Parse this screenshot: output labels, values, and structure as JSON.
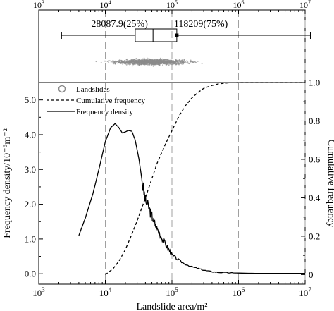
{
  "colors": {
    "grid": "#a0a0a0",
    "scatter": "#8c8c8c",
    "line": "#000000"
  },
  "chart_data": {
    "type": "line",
    "x_scale": "log",
    "xlabel": "Landslide area/m²",
    "ylabel_left": "Frequency density/10⁻⁶m⁻²",
    "ylabel_right": "Cumulative frequency",
    "xlim": [
      1000,
      10000000
    ],
    "ylim_left": [
      -0.3,
      5.5
    ],
    "ylim_right": [
      -0.05,
      1.0
    ],
    "grid": "dashed vertical lines at x = 1e4, 1e5, 1e6, 1e7",
    "legend_position": "top-left",
    "x_ticks": [
      {
        "value": 1000,
        "base": "10",
        "exp": "3"
      },
      {
        "value": 10000,
        "base": "10",
        "exp": "4"
      },
      {
        "value": 100000,
        "base": "10",
        "exp": "5"
      },
      {
        "value": 1000000,
        "base": "10",
        "exp": "6"
      },
      {
        "value": 10000000,
        "base": "10",
        "exp": "7"
      }
    ],
    "y_left_ticks": [
      "0.0",
      "1.0",
      "2.0",
      "3.0",
      "4.0",
      "5.0"
    ],
    "y_right_ticks": [
      "0",
      "0.2",
      "0.4",
      "0.6",
      "0.8",
      "1.0"
    ],
    "legend": [
      {
        "label": "Landslides",
        "symbol": "circle"
      },
      {
        "label": "Cumulative frequency",
        "symbol": "dashed-line"
      },
      {
        "label": "Frequency density",
        "symbol": "solid-line"
      }
    ],
    "boxplot": {
      "whisker_low": 2200,
      "q1": 28087.9,
      "median": 52000,
      "q3": 118209,
      "whisker_high": 12000000,
      "q1_label": "28087.9(25%)",
      "q3_label": "118209(75%)"
    },
    "scatter_range": [
      2200,
      12000000
    ],
    "series": [
      {
        "name": "Frequency density",
        "axis": "left",
        "style": "solid",
        "x": [
          4000,
          5000,
          6500,
          8000,
          10000,
          12000,
          14000,
          16000,
          18000,
          20000,
          22000,
          25000,
          28000,
          32000,
          36000,
          40000,
          45000,
          50000,
          55000,
          60000,
          70000,
          80000,
          90000,
          100000,
          120000,
          150000,
          200000,
          250000,
          300000,
          400000,
          500000,
          700000,
          1000000,
          2000000,
          5000000,
          10000000
        ],
        "values": [
          1.1,
          1.6,
          2.3,
          3.0,
          3.8,
          4.2,
          4.32,
          4.2,
          4.05,
          4.08,
          4.12,
          4.1,
          3.85,
          3.3,
          2.6,
          2.1,
          1.9,
          1.65,
          1.45,
          1.3,
          1.05,
          0.85,
          0.7,
          0.55,
          0.42,
          0.3,
          0.2,
          0.15,
          0.1,
          0.06,
          0.04,
          0.03,
          0.02,
          0.01,
          0.01,
          0.01
        ]
      },
      {
        "name": "Cumulative frequency",
        "axis": "right",
        "style": "dashed",
        "x": [
          10000,
          13000,
          16000,
          20000,
          25000,
          30000,
          40000,
          50000,
          60000,
          80000,
          100000,
          130000,
          160000,
          200000,
          250000,
          300000,
          400000,
          500000,
          700000,
          1000000,
          2000000,
          5000000,
          10000000
        ],
        "values": [
          0.0,
          0.03,
          0.07,
          0.13,
          0.21,
          0.28,
          0.4,
          0.5,
          0.58,
          0.68,
          0.75,
          0.83,
          0.88,
          0.92,
          0.95,
          0.97,
          0.985,
          0.993,
          0.998,
          1.0,
          1.0,
          1.0,
          1.0
        ]
      }
    ]
  }
}
